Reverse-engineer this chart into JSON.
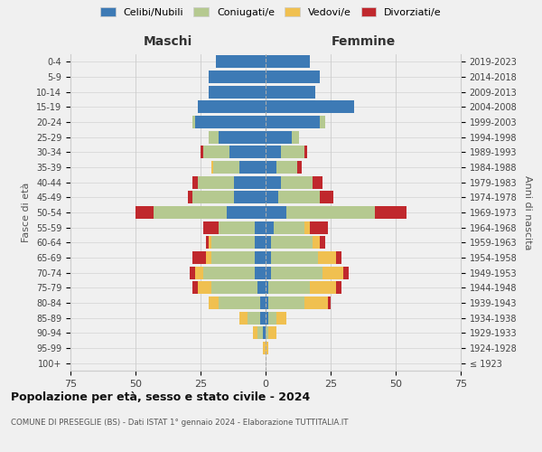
{
  "age_groups": [
    "100+",
    "95-99",
    "90-94",
    "85-89",
    "80-84",
    "75-79",
    "70-74",
    "65-69",
    "60-64",
    "55-59",
    "50-54",
    "45-49",
    "40-44",
    "35-39",
    "30-34",
    "25-29",
    "20-24",
    "15-19",
    "10-14",
    "5-9",
    "0-4"
  ],
  "birth_years": [
    "≤ 1923",
    "1924-1928",
    "1929-1933",
    "1934-1938",
    "1939-1943",
    "1944-1948",
    "1949-1953",
    "1954-1958",
    "1959-1963",
    "1964-1968",
    "1969-1973",
    "1974-1978",
    "1979-1983",
    "1984-1988",
    "1989-1993",
    "1994-1998",
    "1999-2003",
    "2004-2008",
    "2009-2013",
    "2014-2018",
    "2019-2023"
  ],
  "colors": {
    "celibe": "#3d7ab5",
    "coniugato": "#b5c990",
    "vedovo": "#f0c050",
    "divorziato": "#c0282d"
  },
  "maschi": {
    "celibe": [
      0,
      0,
      1,
      2,
      2,
      3,
      4,
      4,
      4,
      4,
      15,
      12,
      12,
      10,
      14,
      18,
      27,
      26,
      22,
      22,
      19
    ],
    "coniugato": [
      0,
      0,
      2,
      5,
      16,
      18,
      20,
      17,
      17,
      14,
      28,
      16,
      14,
      10,
      10,
      4,
      1,
      0,
      0,
      0,
      0
    ],
    "vedovo": [
      0,
      1,
      2,
      3,
      4,
      5,
      3,
      2,
      1,
      0,
      0,
      0,
      0,
      1,
      0,
      0,
      0,
      0,
      0,
      0,
      0
    ],
    "divorziato": [
      0,
      0,
      0,
      0,
      0,
      2,
      2,
      5,
      1,
      6,
      7,
      2,
      2,
      0,
      1,
      0,
      0,
      0,
      0,
      0,
      0
    ]
  },
  "femmine": {
    "nubile": [
      0,
      0,
      0,
      1,
      1,
      1,
      2,
      2,
      2,
      3,
      8,
      5,
      6,
      4,
      6,
      10,
      21,
      34,
      19,
      21,
      17
    ],
    "coniugata": [
      0,
      0,
      1,
      3,
      14,
      16,
      20,
      18,
      16,
      12,
      34,
      16,
      12,
      8,
      9,
      3,
      2,
      0,
      0,
      0,
      0
    ],
    "vedova": [
      0,
      1,
      3,
      4,
      9,
      10,
      8,
      7,
      3,
      2,
      0,
      0,
      0,
      0,
      0,
      0,
      0,
      0,
      0,
      0,
      0
    ],
    "divorziata": [
      0,
      0,
      0,
      0,
      1,
      2,
      2,
      2,
      2,
      7,
      12,
      5,
      4,
      2,
      1,
      0,
      0,
      0,
      0,
      0,
      0
    ]
  },
  "xlim": 75,
  "title": "Popolazione per età, sesso e stato civile - 2024",
  "subtitle": "COMUNE DI PRESEGLIE (BS) - Dati ISTAT 1° gennaio 2024 - Elaborazione TUTTITALIA.IT",
  "ylabel": "Fasce di età",
  "ylabel_right": "Anni di nascita",
  "xlabel_maschi": "Maschi",
  "xlabel_femmine": "Femmine",
  "legend_labels": [
    "Celibi/Nubili",
    "Coniugati/e",
    "Vedovi/e",
    "Divorziati/e"
  ],
  "background_color": "#f0f0f0"
}
